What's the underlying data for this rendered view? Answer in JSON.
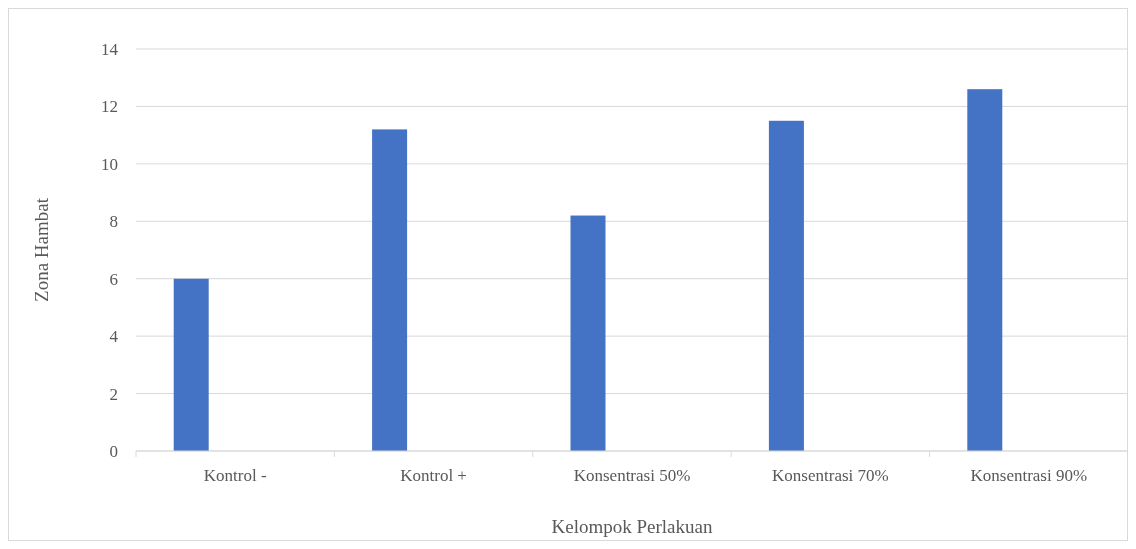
{
  "chart_data": {
    "type": "bar",
    "xlabel": "Kelompok Perlakuan",
    "ylabel": "Zona Hambat",
    "categories": [
      "Kontrol -",
      "Kontrol +",
      "Konsentrasi 50%",
      "Konsentrasi 70%",
      "Konsentrasi 90%"
    ],
    "series": [
      {
        "color": "#4472c4",
        "values": [
          6,
          11.2,
          8.2,
          11.5,
          12.6
        ]
      }
    ],
    "ylim": [
      0,
      14
    ],
    "yticks": [
      0,
      2,
      4,
      6,
      8,
      10,
      12,
      14
    ],
    "grid": "y"
  }
}
